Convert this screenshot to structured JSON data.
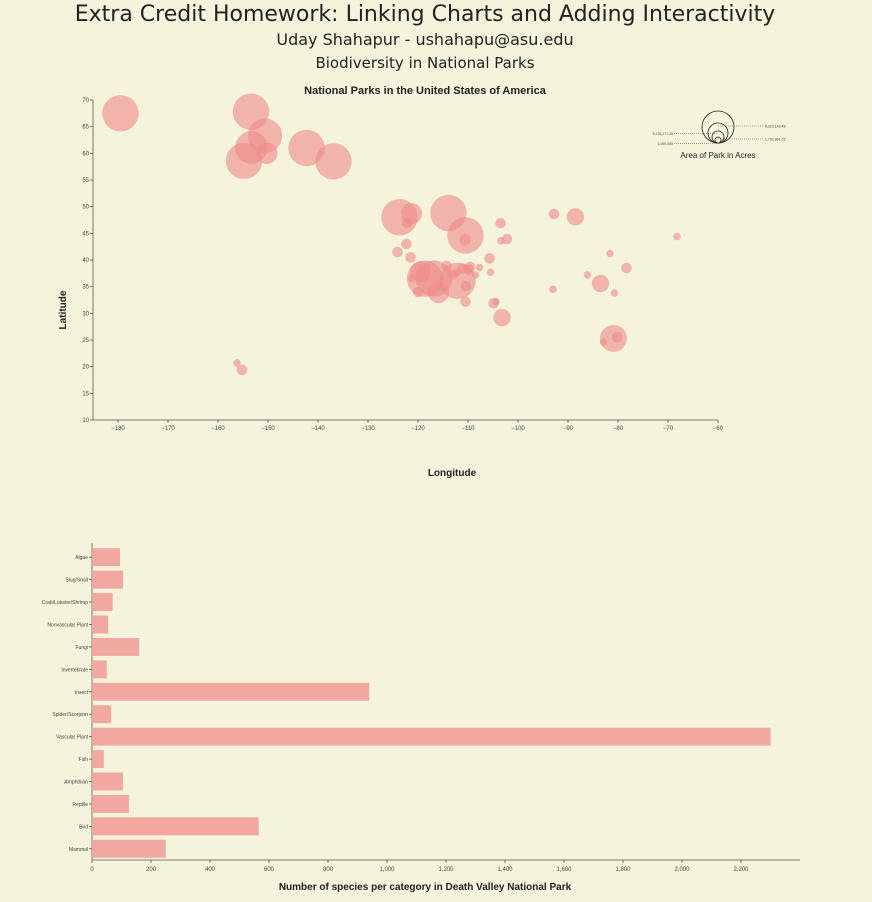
{
  "header": {
    "title": "Extra Credit Homework: Linking Charts and Adding Interactivity",
    "author": "Uday Shahapur - ushahapu@asu.edu",
    "subtitle": "Biodiversity in National Parks"
  },
  "colors": {
    "background": "#f5f3dc",
    "bubble": "#ee8a8a",
    "bar": "#f0a8a0"
  },
  "chart_data": [
    {
      "type": "scatter",
      "title": "National Parks in the United States of America",
      "xlabel": "Longitude",
      "ylabel": "Latitude",
      "xlim": [
        -185,
        -60
      ],
      "ylim": [
        10,
        70
      ],
      "xticks": [
        -180,
        -170,
        -160,
        -150,
        -140,
        -130,
        -120,
        -110,
        -100,
        -90,
        -80,
        -70,
        -60
      ],
      "yticks": [
        10,
        15,
        20,
        25,
        30,
        35,
        40,
        45,
        50,
        55,
        60,
        65,
        70
      ],
      "legend": {
        "title": "Area of Park in Acres",
        "position": "top-right",
        "size_labels": [
          "8,323,146.48",
          "6,178,271.25",
          "1,792,961.75",
          "1,000.000"
        ]
      },
      "points": [
        {
          "lon": -179.5,
          "lat": 67.5,
          "size": 8.0
        },
        {
          "lon": -153.4,
          "lat": 67.8,
          "size": 8.0
        },
        {
          "lon": -150.6,
          "lat": 63.3,
          "size": 7.5
        },
        {
          "lon": -153.3,
          "lat": 61.1,
          "size": 7.0
        },
        {
          "lon": -154.8,
          "lat": 58.6,
          "size": 8.0
        },
        {
          "lon": -150.2,
          "lat": 60.0,
          "size": 4.0
        },
        {
          "lon": -142.3,
          "lat": 61.0,
          "size": 8.0
        },
        {
          "lon": -136.9,
          "lat": 58.5,
          "size": 8.0
        },
        {
          "lon": -123.7,
          "lat": 48.0,
          "size": 8.0
        },
        {
          "lon": -121.3,
          "lat": 48.7,
          "size": 4.0
        },
        {
          "lon": -122.2,
          "lat": 46.9,
          "size": 1.2
        },
        {
          "lon": -113.9,
          "lat": 48.8,
          "size": 8.0
        },
        {
          "lon": -110.5,
          "lat": 44.6,
          "size": 8.0
        },
        {
          "lon": -110.6,
          "lat": 43.8,
          "size": 1.5
        },
        {
          "lon": -122.3,
          "lat": 43.0,
          "size": 1.2
        },
        {
          "lon": -124.1,
          "lat": 41.5,
          "size": 1.2
        },
        {
          "lon": -121.5,
          "lat": 40.5,
          "size": 1.2
        },
        {
          "lon": -103.5,
          "lat": 46.9,
          "size": 1.2
        },
        {
          "lon": -102.2,
          "lat": 43.9,
          "size": 1.2
        },
        {
          "lon": -103.4,
          "lat": 43.6,
          "size": 0.4
        },
        {
          "lon": -92.8,
          "lat": 48.6,
          "size": 1.2
        },
        {
          "lon": -88.5,
          "lat": 48.1,
          "size": 3.0
        },
        {
          "lon": -68.2,
          "lat": 44.4,
          "size": 0.4
        },
        {
          "lon": -119.5,
          "lat": 37.8,
          "size": 4.0
        },
        {
          "lon": -118.6,
          "lat": 36.5,
          "size": 8.0
        },
        {
          "lon": -116.8,
          "lat": 36.5,
          "size": 8.0
        },
        {
          "lon": -115.9,
          "lat": 33.9,
          "size": 4.0
        },
        {
          "lon": -114.3,
          "lat": 38.9,
          "size": 1.2
        },
        {
          "lon": -111.1,
          "lat": 38.4,
          "size": 1.2
        },
        {
          "lon": -109.6,
          "lat": 38.7,
          "size": 1.2
        },
        {
          "lon": -112.1,
          "lat": 36.1,
          "size": 8.0
        },
        {
          "lon": -113.0,
          "lat": 37.3,
          "size": 1.2
        },
        {
          "lon": -112.2,
          "lat": 37.6,
          "size": 0.4
        },
        {
          "lon": -109.9,
          "lat": 38.2,
          "size": 1.2
        },
        {
          "lon": -110.4,
          "lat": 35.1,
          "size": 1.2
        },
        {
          "lon": -110.5,
          "lat": 32.2,
          "size": 1.2
        },
        {
          "lon": -108.5,
          "lat": 37.2,
          "size": 0.4
        },
        {
          "lon": -107.7,
          "lat": 38.6,
          "size": 0.4
        },
        {
          "lon": -105.7,
          "lat": 40.3,
          "size": 1.2
        },
        {
          "lon": -105.5,
          "lat": 37.7,
          "size": 0.4
        },
        {
          "lon": -104.9,
          "lat": 31.9,
          "size": 1.2
        },
        {
          "lon": -104.4,
          "lat": 32.2,
          "size": 0.4
        },
        {
          "lon": -103.2,
          "lat": 29.2,
          "size": 3.0
        },
        {
          "lon": -121.2,
          "lat": 36.5,
          "size": 0.4
        },
        {
          "lon": -120.0,
          "lat": 34.0,
          "size": 1.2
        },
        {
          "lon": -93.0,
          "lat": 34.5,
          "size": 0.4
        },
        {
          "lon": -86.1,
          "lat": 37.2,
          "size": 0.4
        },
        {
          "lon": -83.5,
          "lat": 35.6,
          "size": 3.0
        },
        {
          "lon": -80.7,
          "lat": 33.8,
          "size": 0.4
        },
        {
          "lon": -78.3,
          "lat": 38.5,
          "size": 1.2
        },
        {
          "lon": -81.6,
          "lat": 41.2,
          "size": 0.4
        },
        {
          "lon": -80.9,
          "lat": 25.3,
          "size": 5.5
        },
        {
          "lon": -80.2,
          "lat": 25.5,
          "size": 1.2
        },
        {
          "lon": -82.9,
          "lat": 24.6,
          "size": 0.4
        },
        {
          "lon": -156.2,
          "lat": 20.7,
          "size": 0.4
        },
        {
          "lon": -155.2,
          "lat": 19.4,
          "size": 1.2
        }
      ]
    },
    {
      "type": "bar",
      "orientation": "horizontal",
      "title": "",
      "xlabel": "Number of species per category in Death Valley National Park",
      "ylabel": "",
      "xlim": [
        0,
        2400
      ],
      "xticks": [
        0,
        200,
        400,
        600,
        800,
        1000,
        1200,
        1400,
        1600,
        1800,
        2000,
        2200
      ],
      "xtick_labels": [
        "0",
        "200",
        "400",
        "600",
        "800",
        "1,000",
        "1,200",
        "1,400",
        "1,600",
        "1,800",
        "2,000",
        "2,200"
      ],
      "categories": [
        "Algae",
        "Slug/Snail",
        "Crab/Lobster/Shrimp",
        "Nonvascular Plant",
        "Fungi",
        "Invertebrate",
        "Insect",
        "Spider/Scorpion",
        "Vascular Plant",
        "Fish",
        "Amphibian",
        "Reptile",
        "Bird",
        "Mammal"
      ],
      "values": [
        95,
        105,
        70,
        55,
        160,
        50,
        940,
        65,
        2300,
        40,
        105,
        125,
        565,
        250
      ]
    }
  ]
}
